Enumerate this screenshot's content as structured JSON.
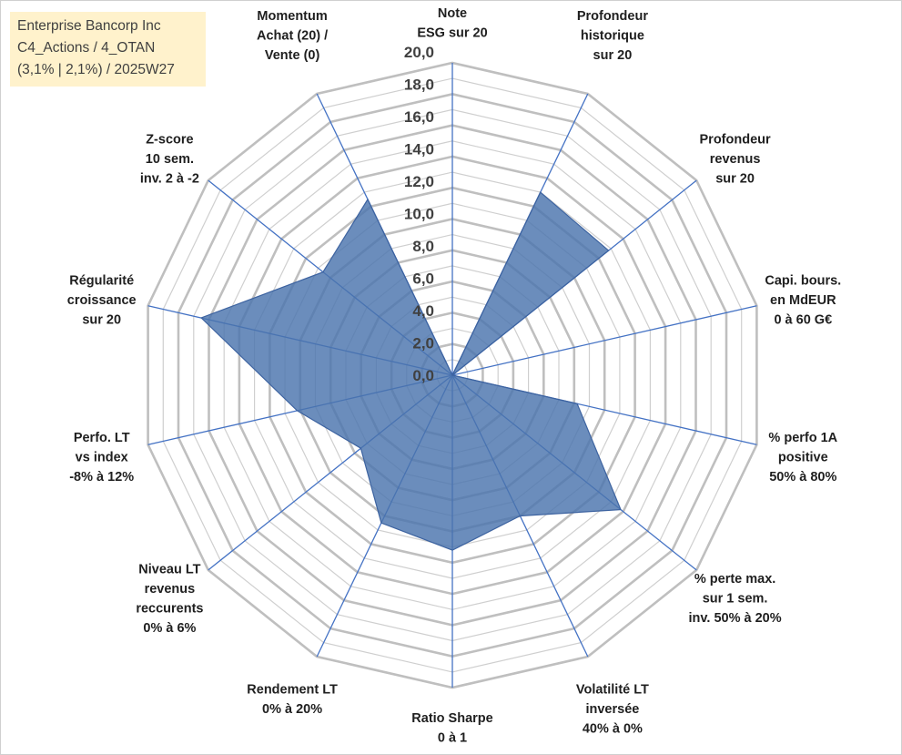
{
  "title_lines": [
    "Enterprise Bancorp Inc",
    "C4_Actions / 4_OTAN",
    "(3,1% | 2,1%) / 2025W27"
  ],
  "chart_data": {
    "type": "radar",
    "rlim": [
      0,
      20
    ],
    "ticks": [
      "0,0",
      "2,0",
      "4,0",
      "6,0",
      "8,0",
      "10,0",
      "12,0",
      "14,0",
      "16,0",
      "18,0",
      "20,0"
    ],
    "axes": [
      [
        "Note",
        "ESG sur 20"
      ],
      [
        "Profondeur",
        "historique",
        "sur 20"
      ],
      [
        "Profondeur",
        "revenus",
        "sur 20"
      ],
      [
        "Capi. bours.",
        "en MdEUR",
        "0 à 60 G€"
      ],
      [
        "% perfo 1A",
        "positive",
        "50% à 80%"
      ],
      [
        "% perte max.",
        "sur 1 sem.",
        "inv. 50% à 20%"
      ],
      [
        "Volatilité LT",
        "inversée",
        "40% à 0%"
      ],
      [
        "Ratio Sharpe",
        "0 à 1"
      ],
      [
        "Rendement LT",
        "0% à 20%"
      ],
      [
        "Niveau LT",
        "revenus",
        "reccurents",
        "0% à 6%"
      ],
      [
        "Perfo. LT",
        "vs index",
        "-8% à 12%"
      ],
      [
        "Régularité",
        "croissance",
        "sur 20"
      ],
      [
        "Z-score",
        "10 sem.",
        "inv. 2 à -2"
      ],
      [
        "Momentum",
        "Achat (20) /",
        "Vente (0)"
      ]
    ],
    "values": [
      0,
      13.0,
      12.8,
      0,
      8.2,
      13.8,
      10.0,
      11.2,
      10.5,
      7.5,
      10.2,
      16.5,
      10.6,
      12.5
    ],
    "colors": {
      "fill": "#4a74ad",
      "stroke": "#3d63a0",
      "grid": "#bfbfbf",
      "spoke": "#4472c4"
    },
    "grid": true
  }
}
